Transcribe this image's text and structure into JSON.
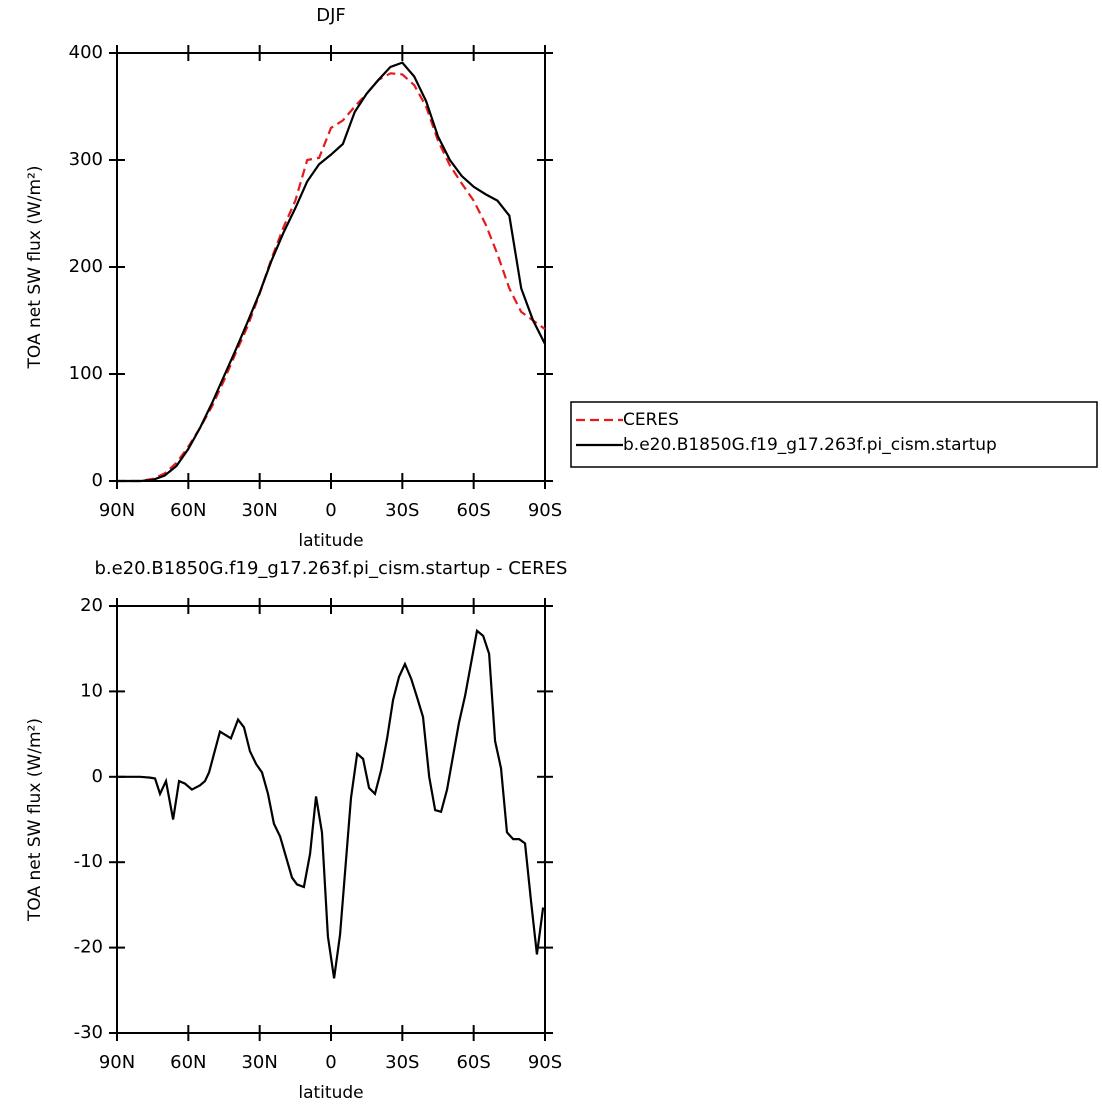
{
  "chart_data": [
    {
      "type": "line",
      "title": "DJF",
      "xlabel": "latitude",
      "ylabel": "TOA net SW flux (W/m²)",
      "x": [
        90,
        85,
        80,
        75,
        70,
        65,
        60,
        55,
        50,
        45,
        40,
        35,
        30,
        25,
        20,
        15,
        10,
        5,
        0,
        -5,
        -10,
        -15,
        -20,
        -25,
        -30,
        -35,
        -40,
        -45,
        -50,
        -55,
        -60,
        -65,
        -70,
        -75,
        -80,
        -85,
        -90
      ],
      "series": [
        {
          "name": "CERES",
          "color": "#e41a1c",
          "linestyle": "dashed",
          "values": [
            0,
            0,
            0,
            2,
            7,
            17,
            32,
            50,
            70,
            94,
            120,
            145,
            175,
            208,
            237,
            262,
            300,
            302,
            330,
            337,
            350,
            362,
            375,
            381,
            380,
            370,
            350,
            318,
            295,
            278,
            262,
            240,
            212,
            180,
            158,
            150,
            142
          ]
        },
        {
          "name": "b.e20.B1850G.f19_g17.263f.pi_cism.startup",
          "color": "#000000",
          "linestyle": "solid",
          "values": [
            0,
            0,
            0,
            1,
            5,
            14,
            30,
            50,
            73,
            98,
            123,
            149,
            176,
            206,
            232,
            255,
            280,
            296,
            305,
            315,
            345,
            362,
            375,
            387,
            391,
            378,
            355,
            322,
            300,
            285,
            275,
            268,
            262,
            248,
            180,
            150,
            128
          ]
        }
      ],
      "xlim": [
        90,
        -90
      ],
      "xticks": [
        {
          "value": 90,
          "label": "90N"
        },
        {
          "value": 60,
          "label": "60N"
        },
        {
          "value": 30,
          "label": "30N"
        },
        0,
        {
          "value": -30,
          "label": "30S"
        },
        {
          "value": -60,
          "label": "60S"
        },
        {
          "value": -90,
          "label": "90S"
        }
      ],
      "ylim": [
        0,
        400
      ],
      "yticks": [
        0,
        100,
        200,
        300,
        400
      ],
      "legend": "right"
    },
    {
      "type": "line",
      "title": "b.e20.B1850G.f19_g17.263f.pi_cism.startup - CERES",
      "xlabel": "latitude",
      "ylabel": "TOA net SW flux (W/m²)",
      "x": [
        90,
        80.3,
        76.1,
        74,
        71.9,
        69.4,
        66.4,
        63.9,
        61.4,
        58.5,
        55.1,
        53,
        51.3,
        46.7,
        42.1,
        39.1,
        36.6,
        34.1,
        31.5,
        29,
        26.5,
        24,
        21.4,
        16.4,
        14.3,
        11.4,
        8.8,
        6.3,
        3.8,
        1.3,
        -1.3,
        -3.8,
        -8.4,
        -11,
        -13.5,
        -16,
        -18.5,
        -21.1,
        -23.6,
        -26.1,
        -28.6,
        -31.1,
        -33.7,
        -36.2,
        -38.7,
        -41.3,
        -43.8,
        -46.3,
        -48.8,
        -53.8,
        -56.4,
        -61.4,
        -64,
        -66.5,
        -69,
        -71.5,
        -74,
        -76.6,
        -79.1,
        -81.6,
        -84.1,
        -86.6,
        -89.2
      ],
      "series": [
        {
          "color": "#000000",
          "linestyle": "solid",
          "values": [
            0,
            0,
            -0.1,
            -0.2,
            -2,
            -0.5,
            -5,
            -0.5,
            -0.8,
            -1.5,
            -1,
            -0.5,
            0.5,
            5.3,
            4.5,
            6.7,
            5.8,
            3,
            1.5,
            0.5,
            -2,
            -5.5,
            -7,
            -11.8,
            -12.6,
            -12.9,
            -9,
            -2.3,
            -6.5,
            -18.7,
            -23.6,
            -18.5,
            -2.5,
            2.7,
            2.1,
            -1.3,
            -2,
            0.8,
            4.5,
            9,
            11.7,
            13.2,
            11.5,
            9.3,
            7,
            0,
            -3.9,
            -4.1,
            -1.5,
            6.3,
            9.5,
            17.1,
            16.5,
            14.4,
            4.2,
            1,
            -6.5,
            -7.3,
            -7.3,
            -7.8,
            -14.5,
            -20.8,
            -15.3
          ]
        }
      ],
      "xlim": [
        90,
        -90
      ],
      "xticks": [
        {
          "value": 90,
          "label": "90N"
        },
        {
          "value": 60,
          "label": "60N"
        },
        {
          "value": 30,
          "label": "30N"
        },
        0,
        {
          "value": -30,
          "label": "30S"
        },
        {
          "value": -60,
          "label": "60S"
        },
        {
          "value": -90,
          "label": "90S"
        }
      ],
      "ylim": [
        -30,
        20
      ],
      "yticks": [
        -30,
        -20,
        -10,
        0,
        10,
        20
      ]
    }
  ]
}
